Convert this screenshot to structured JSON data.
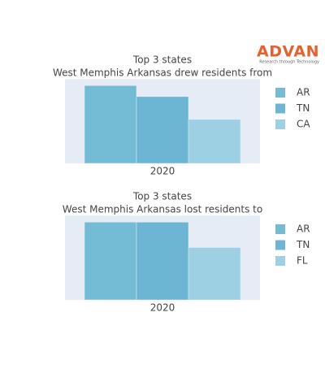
{
  "logo": {
    "name": "ADVAN",
    "tagline": "Research through Technology"
  },
  "chart_data": [
    {
      "type": "bar",
      "title": "Top 3 states",
      "subtitle": "West Memphis Arkansas drew residents from",
      "categories": [
        "2020"
      ],
      "ylim": [
        0,
        100
      ],
      "series": [
        {
          "name": "AR",
          "color": "#74bcd6",
          "values": [
            92
          ]
        },
        {
          "name": "TN",
          "color": "#6db6d3",
          "values": [
            79
          ]
        },
        {
          "name": "CA",
          "color": "#9ed0e3",
          "values": [
            52
          ]
        }
      ]
    },
    {
      "type": "bar",
      "title": "Top 3 states",
      "subtitle": "West Memphis Arkansas lost residents to",
      "categories": [
        "2020"
      ],
      "ylim": [
        0,
        100
      ],
      "series": [
        {
          "name": "AR",
          "color": "#74bcd6",
          "values": [
            92
          ]
        },
        {
          "name": "TN",
          "color": "#6db6d3",
          "values": [
            92
          ]
        },
        {
          "name": "FL",
          "color": "#9ed0e3",
          "values": [
            62
          ]
        }
      ]
    }
  ]
}
